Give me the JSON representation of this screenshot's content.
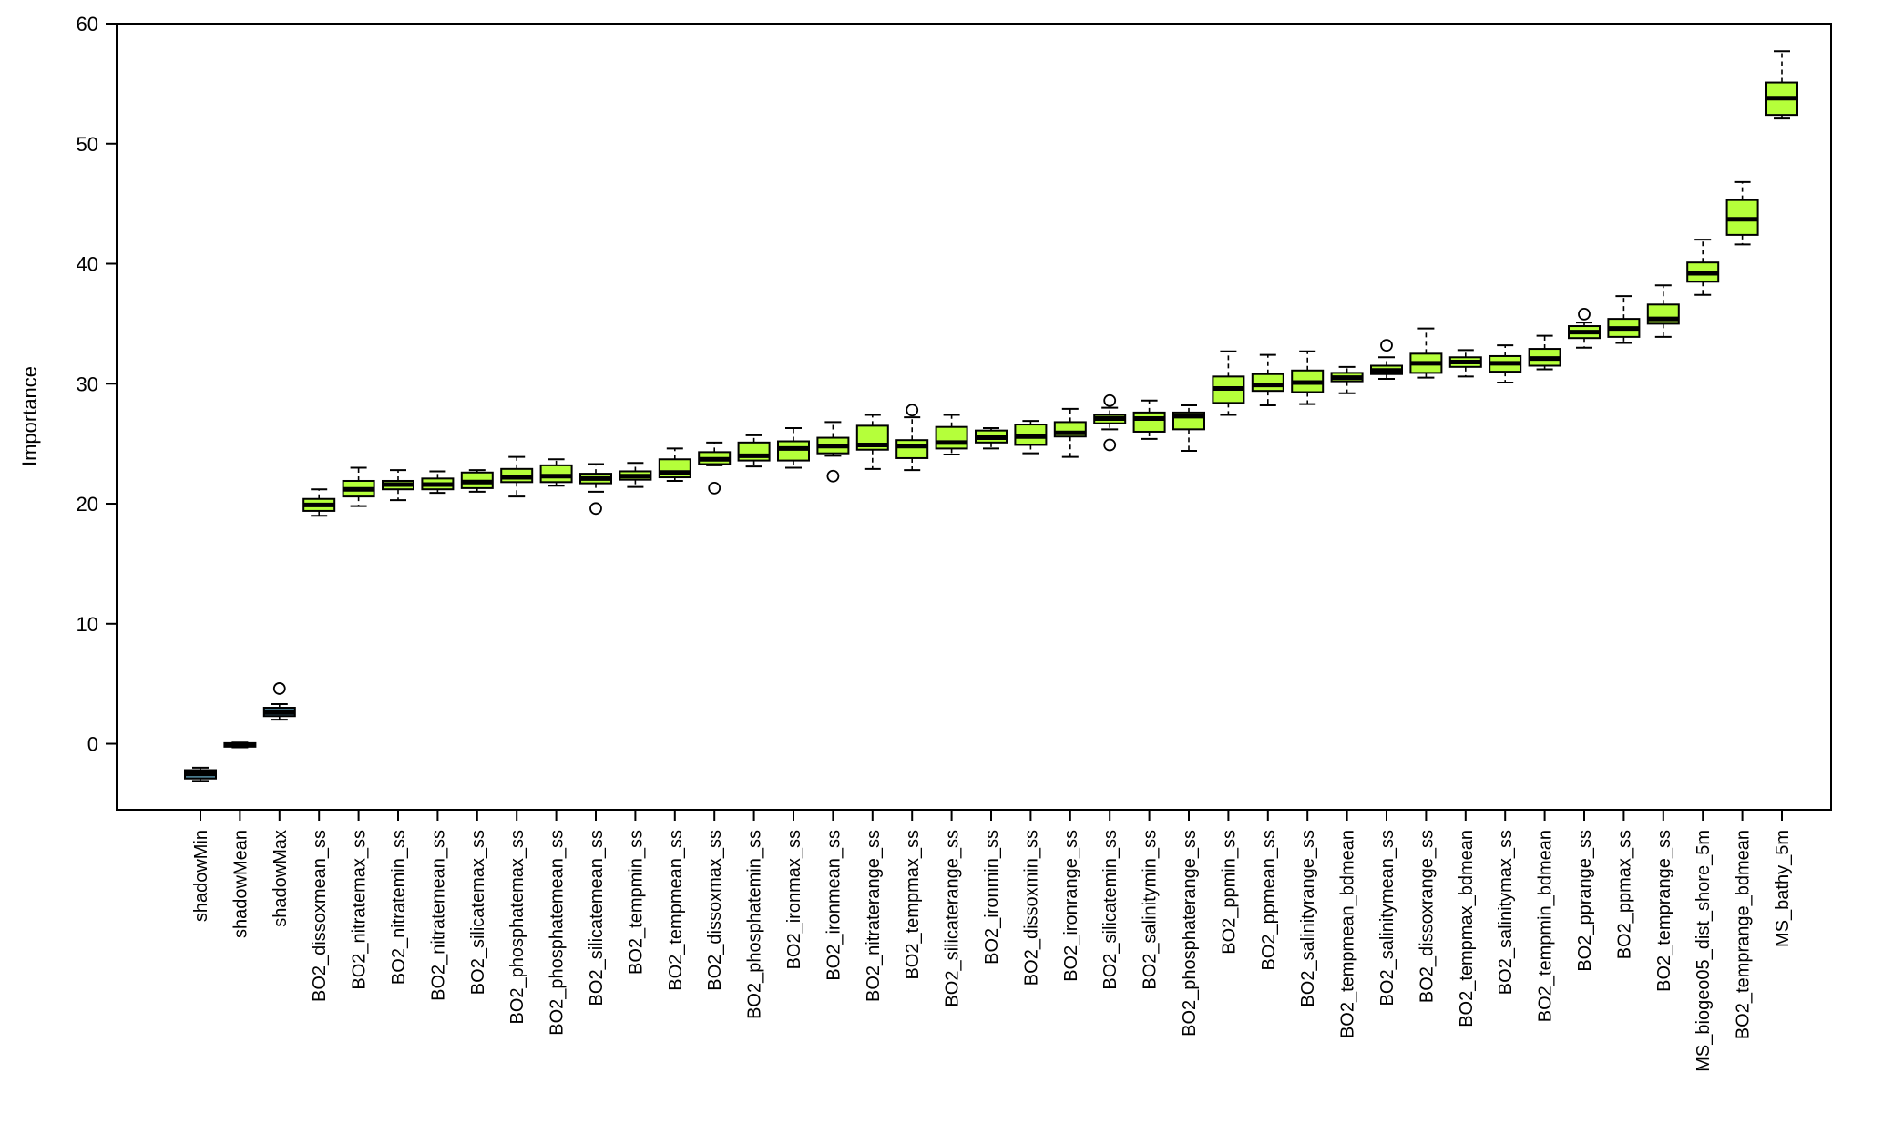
{
  "chart_data": {
    "type": "boxplot",
    "ylabel": "Importance",
    "xlabel": "",
    "ylim": [
      -5.5,
      60
    ],
    "yticks": [
      0,
      10,
      20,
      30,
      40,
      50,
      60
    ],
    "grid": false,
    "colors": {
      "shadow": "#4a7b8e",
      "feature": "#b5ff3a",
      "stroke": "#000000"
    },
    "boxes": [
      {
        "name": "shadowMin",
        "group": "shadow",
        "wlo": -3.1,
        "q1": -2.9,
        "med": -2.5,
        "q3": -2.2,
        "whi": -2.0,
        "outliers": []
      },
      {
        "name": "shadowMean",
        "group": "shadow",
        "wlo": -0.3,
        "q1": -0.25,
        "med": -0.1,
        "q3": 0.05,
        "whi": 0.1,
        "outliers": []
      },
      {
        "name": "shadowMax",
        "group": "shadow",
        "wlo": 2.0,
        "q1": 2.3,
        "med": 2.6,
        "q3": 3.0,
        "whi": 3.3,
        "outliers": [
          4.6
        ]
      },
      {
        "name": "BO2_dissoxmean_ss",
        "group": "feature",
        "wlo": 19.0,
        "q1": 19.4,
        "med": 19.9,
        "q3": 20.4,
        "whi": 21.2,
        "outliers": []
      },
      {
        "name": "BO2_nitratemax_ss",
        "group": "feature",
        "wlo": 19.8,
        "q1": 20.6,
        "med": 21.2,
        "q3": 21.9,
        "whi": 23.0,
        "outliers": []
      },
      {
        "name": "BO2_nitratemin_ss",
        "group": "feature",
        "wlo": 20.3,
        "q1": 21.2,
        "med": 21.6,
        "q3": 21.9,
        "whi": 22.8,
        "outliers": []
      },
      {
        "name": "BO2_nitratemean_ss",
        "group": "feature",
        "wlo": 20.9,
        "q1": 21.2,
        "med": 21.6,
        "q3": 22.1,
        "whi": 22.7,
        "outliers": []
      },
      {
        "name": "BO2_silicatemax_ss",
        "group": "feature",
        "wlo": 21.0,
        "q1": 21.3,
        "med": 21.8,
        "q3": 22.6,
        "whi": 22.8,
        "outliers": []
      },
      {
        "name": "BO2_phosphatemax_ss",
        "group": "feature",
        "wlo": 20.6,
        "q1": 21.8,
        "med": 22.2,
        "q3": 22.9,
        "whi": 23.9,
        "outliers": []
      },
      {
        "name": "BO2_phosphatemean_ss",
        "group": "feature",
        "wlo": 21.5,
        "q1": 21.8,
        "med": 22.3,
        "q3": 23.2,
        "whi": 23.7,
        "outliers": []
      },
      {
        "name": "BO2_silicatemean_ss",
        "group": "feature",
        "wlo": 21.0,
        "q1": 21.7,
        "med": 22.1,
        "q3": 22.5,
        "whi": 23.3,
        "outliers": [
          19.6
        ]
      },
      {
        "name": "BO2_tempmin_ss",
        "group": "feature",
        "wlo": 21.4,
        "q1": 22.0,
        "med": 22.3,
        "q3": 22.7,
        "whi": 23.4,
        "outliers": []
      },
      {
        "name": "BO2_tempmean_ss",
        "group": "feature",
        "wlo": 21.9,
        "q1": 22.2,
        "med": 22.6,
        "q3": 23.7,
        "whi": 24.6,
        "outliers": []
      },
      {
        "name": "BO2_dissoxmax_ss",
        "group": "feature",
        "wlo": 23.2,
        "q1": 23.3,
        "med": 23.7,
        "q3": 24.3,
        "whi": 25.1,
        "outliers": [
          21.3
        ]
      },
      {
        "name": "BO2_phosphatemin_ss",
        "group": "feature",
        "wlo": 23.1,
        "q1": 23.6,
        "med": 24.0,
        "q3": 25.1,
        "whi": 25.7,
        "outliers": []
      },
      {
        "name": "BO2_ironmax_ss",
        "group": "feature",
        "wlo": 23.0,
        "q1": 23.6,
        "med": 24.6,
        "q3": 25.2,
        "whi": 26.3,
        "outliers": []
      },
      {
        "name": "BO2_ironmean_ss",
        "group": "feature",
        "wlo": 24.0,
        "q1": 24.2,
        "med": 24.8,
        "q3": 25.5,
        "whi": 26.8,
        "outliers": [
          22.3
        ]
      },
      {
        "name": "BO2_nitraterange_ss",
        "group": "feature",
        "wlo": 22.9,
        "q1": 24.5,
        "med": 24.9,
        "q3": 26.5,
        "whi": 27.4,
        "outliers": []
      },
      {
        "name": "BO2_tempmax_ss",
        "group": "feature",
        "wlo": 22.8,
        "q1": 23.8,
        "med": 24.8,
        "q3": 25.3,
        "whi": 27.2,
        "outliers": [
          27.8
        ]
      },
      {
        "name": "BO2_silicaterange_ss",
        "group": "feature",
        "wlo": 24.1,
        "q1": 24.6,
        "med": 25.1,
        "q3": 26.4,
        "whi": 27.4,
        "outliers": []
      },
      {
        "name": "BO2_ironmin_ss",
        "group": "feature",
        "wlo": 24.6,
        "q1": 25.1,
        "med": 25.5,
        "q3": 26.1,
        "whi": 26.3,
        "outliers": []
      },
      {
        "name": "BO2_dissoxmin_ss",
        "group": "feature",
        "wlo": 24.2,
        "q1": 24.9,
        "med": 25.6,
        "q3": 26.6,
        "whi": 26.9,
        "outliers": []
      },
      {
        "name": "BO2_ironrange_ss",
        "group": "feature",
        "wlo": 23.9,
        "q1": 25.6,
        "med": 25.9,
        "q3": 26.8,
        "whi": 27.9,
        "outliers": []
      },
      {
        "name": "BO2_silicatemin_ss",
        "group": "feature",
        "wlo": 26.2,
        "q1": 26.7,
        "med": 27.1,
        "q3": 27.4,
        "whi": 28.0,
        "outliers": [
          28.6,
          24.9
        ]
      },
      {
        "name": "BO2_salinitymin_ss",
        "group": "feature",
        "wlo": 25.4,
        "q1": 26.0,
        "med": 27.1,
        "q3": 27.6,
        "whi": 28.6,
        "outliers": []
      },
      {
        "name": "BO2_phosphaterange_ss",
        "group": "feature",
        "wlo": 24.4,
        "q1": 26.2,
        "med": 27.3,
        "q3": 27.6,
        "whi": 28.2,
        "outliers": []
      },
      {
        "name": "BO2_ppmin_ss",
        "group": "feature",
        "wlo": 27.4,
        "q1": 28.4,
        "med": 29.6,
        "q3": 30.6,
        "whi": 32.7,
        "outliers": []
      },
      {
        "name": "BO2_ppmean_ss",
        "group": "feature",
        "wlo": 28.2,
        "q1": 29.4,
        "med": 29.9,
        "q3": 30.8,
        "whi": 32.4,
        "outliers": []
      },
      {
        "name": "BO2_salinityrange_ss",
        "group": "feature",
        "wlo": 28.3,
        "q1": 29.3,
        "med": 30.1,
        "q3": 31.1,
        "whi": 32.7,
        "outliers": []
      },
      {
        "name": "BO2_tempmean_bdmean",
        "group": "feature",
        "wlo": 29.2,
        "q1": 30.2,
        "med": 30.5,
        "q3": 30.9,
        "whi": 31.4,
        "outliers": []
      },
      {
        "name": "BO2_salinitymean_ss",
        "group": "feature",
        "wlo": 30.4,
        "q1": 30.8,
        "med": 31.1,
        "q3": 31.5,
        "whi": 32.2,
        "outliers": [
          33.2
        ]
      },
      {
        "name": "BO2_dissoxrange_ss",
        "group": "feature",
        "wlo": 30.5,
        "q1": 30.9,
        "med": 31.7,
        "q3": 32.5,
        "whi": 34.6,
        "outliers": []
      },
      {
        "name": "BO2_tempmax_bdmean",
        "group": "feature",
        "wlo": 30.6,
        "q1": 31.4,
        "med": 31.8,
        "q3": 32.2,
        "whi": 32.8,
        "outliers": []
      },
      {
        "name": "BO2_salinitymax_ss",
        "group": "feature",
        "wlo": 30.1,
        "q1": 31.0,
        "med": 31.7,
        "q3": 32.3,
        "whi": 33.2,
        "outliers": []
      },
      {
        "name": "BO2_tempmin_bdmean",
        "group": "feature",
        "wlo": 31.2,
        "q1": 31.5,
        "med": 32.1,
        "q3": 32.9,
        "whi": 34.0,
        "outliers": []
      },
      {
        "name": "BO2_pprange_ss",
        "group": "feature",
        "wlo": 33.0,
        "q1": 33.8,
        "med": 34.3,
        "q3": 34.8,
        "whi": 35.1,
        "outliers": [
          35.8
        ]
      },
      {
        "name": "BO2_ppmax_ss",
        "group": "feature",
        "wlo": 33.4,
        "q1": 33.9,
        "med": 34.6,
        "q3": 35.4,
        "whi": 37.3,
        "outliers": []
      },
      {
        "name": "BO2_temprange_ss",
        "group": "feature",
        "wlo": 33.9,
        "q1": 35.0,
        "med": 35.4,
        "q3": 36.6,
        "whi": 38.2,
        "outliers": []
      },
      {
        "name": "MS_biogeo05_dist_shore_5m",
        "group": "feature",
        "wlo": 37.4,
        "q1": 38.5,
        "med": 39.2,
        "q3": 40.1,
        "whi": 42.0,
        "outliers": []
      },
      {
        "name": "BO2_temprange_bdmean",
        "group": "feature",
        "wlo": 41.6,
        "q1": 42.4,
        "med": 43.7,
        "q3": 45.3,
        "whi": 46.8,
        "outliers": []
      },
      {
        "name": "MS_bathy_5m",
        "group": "feature",
        "wlo": 52.1,
        "q1": 52.4,
        "med": 53.8,
        "q3": 55.1,
        "whi": 57.7,
        "outliers": []
      }
    ]
  }
}
